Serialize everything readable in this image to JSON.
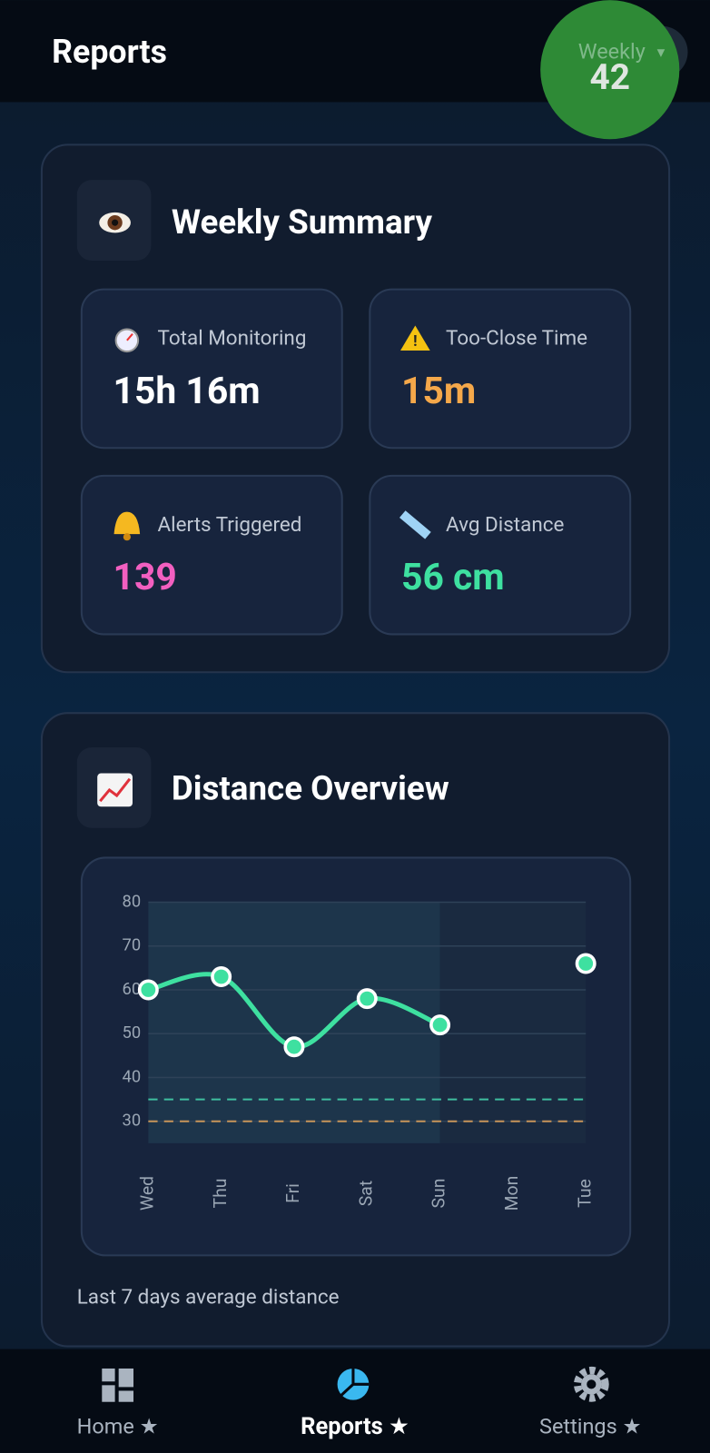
{
  "header": {
    "title": "Reports",
    "dropdown": "Weekly",
    "badge": "42"
  },
  "summary": {
    "title": "Weekly Summary",
    "stats": [
      {
        "label": "Total Monitoring",
        "value": "15h 16m",
        "color": "#ffffff"
      },
      {
        "label": "Too-Close Time",
        "value": "15m",
        "color": "#f5a84a"
      },
      {
        "label": "Alerts Triggered",
        "value": "139",
        "color": "#f25fc0"
      },
      {
        "label": "Avg Distance",
        "value": "56 cm",
        "color": "#3ee0a0"
      }
    ]
  },
  "distance": {
    "title": "Distance Overview",
    "caption": "Last 7 days average distance",
    "chart_data": {
      "type": "line",
      "categories": [
        "Wed",
        "Thu",
        "Fri",
        "Sat",
        "Sun",
        "Mon",
        "Tue"
      ],
      "values": [
        60,
        63,
        47,
        58,
        52,
        null,
        66
      ],
      "color": "#3ee0a0",
      "ylim": [
        25,
        80
      ],
      "yticks": [
        30,
        40,
        50,
        60,
        70,
        80
      ],
      "grid": true,
      "reference_lines": [
        {
          "value": 35,
          "color": "#3fbf9f"
        },
        {
          "value": 30,
          "color": "#c8955a"
        }
      ]
    }
  },
  "nav": [
    {
      "label": "Home ★",
      "active": false
    },
    {
      "label": "Reports ★",
      "active": true
    },
    {
      "label": "Settings ★",
      "active": false
    }
  ]
}
